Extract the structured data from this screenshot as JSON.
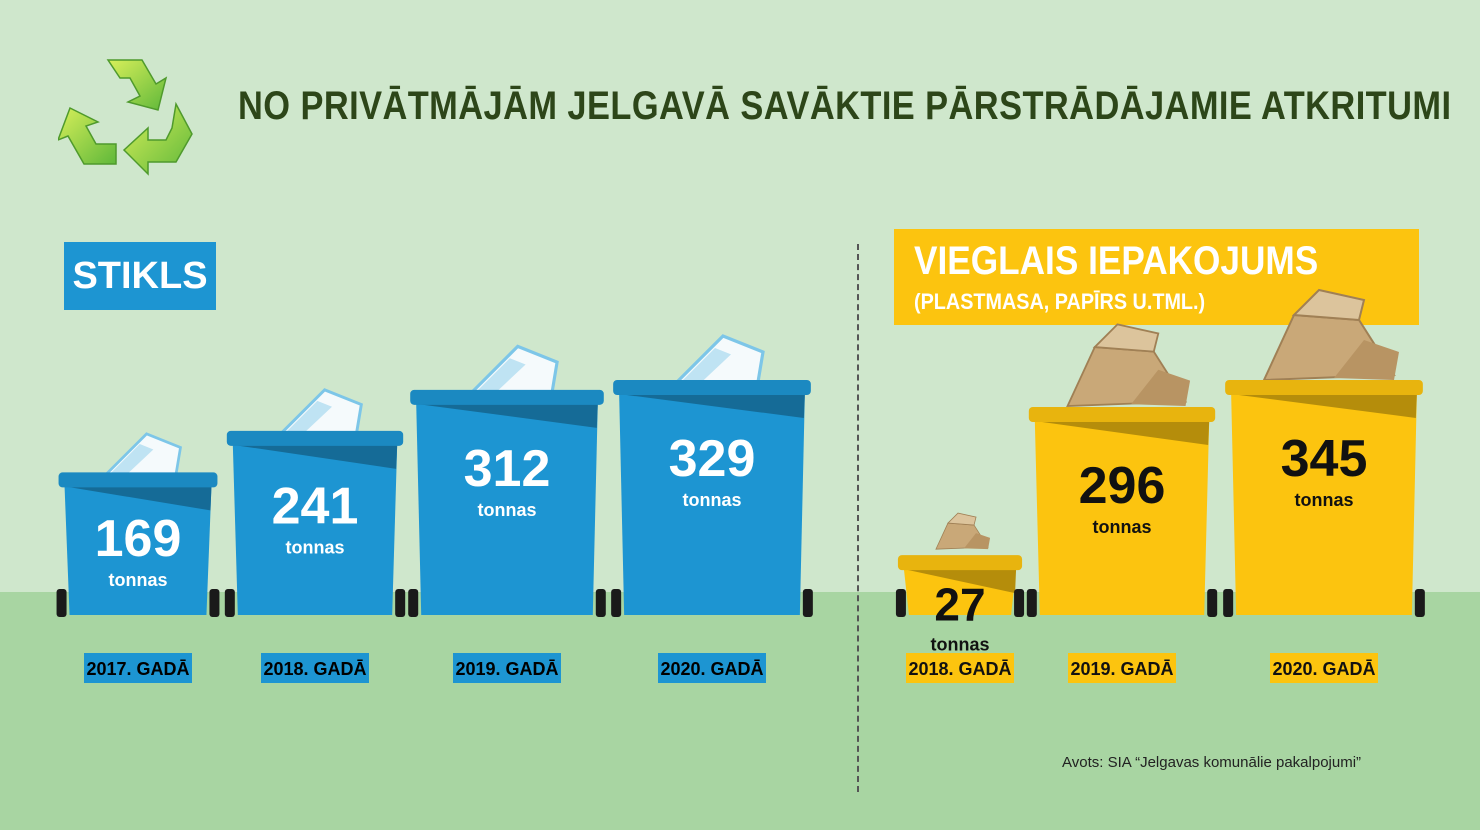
{
  "title": "NO PRIVĀTMĀJĀM JELGAVĀ SAVĀKTIE PĀRSTRĀDĀJAMIE ATKRITUMI",
  "icons": {
    "logo": "recycle-icon"
  },
  "colors": {
    "glass": "#1d95d2",
    "packaging": "#fcc40f",
    "background": "#cfe7cc",
    "ground": "#a8d5a2",
    "title": "#2d4619"
  },
  "source": "Avots: SIA “Jelgavas komunālie pakalpojumi”",
  "chart_data": [
    {
      "type": "bar",
      "title": "STIKLS",
      "categories": [
        "2017. GADĀ",
        "2018. GADĀ",
        "2019. GADĀ",
        "2020. GADĀ"
      ],
      "values": [
        169,
        241,
        312,
        329
      ],
      "unit": "tonnas",
      "color": "#1d95d2",
      "value_color": "#ffffff",
      "label_color": "#000000"
    },
    {
      "type": "bar",
      "title": "VIEGLAIS IEPAKOJUMS",
      "subtitle": "(PLASTMASA, PAPĪRS U.TML.)",
      "categories": [
        "2018. GADĀ",
        "2019. GADĀ",
        "2020. GADĀ"
      ],
      "values": [
        27,
        296,
        345
      ],
      "unit": "tonnas",
      "color": "#fcc40f",
      "value_color": "#111111",
      "label_color": "#111111"
    }
  ]
}
